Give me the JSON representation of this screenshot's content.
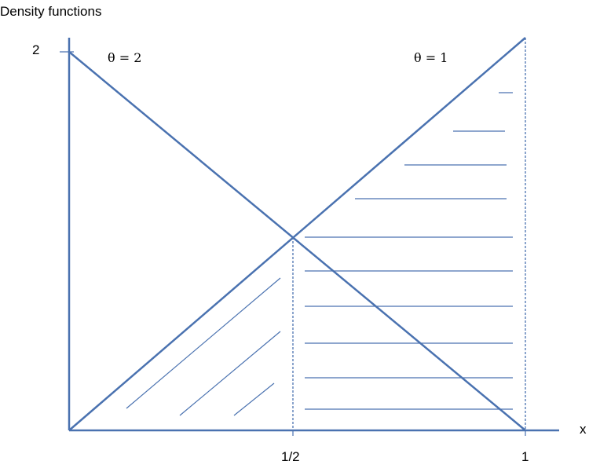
{
  "title": "Density functions",
  "x_axis_label": "x",
  "y_tick_label": "2",
  "x_tick_labels": [
    "1/2",
    "1"
  ],
  "curve_labels": [
    "θ = 2",
    "θ = 1"
  ],
  "line_color": "#4a72b0"
}
